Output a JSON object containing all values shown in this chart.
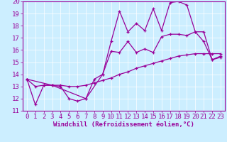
{
  "xlabel": "Windchill (Refroidissement éolien,°C)",
  "bg_color": "#cceeff",
  "line_color": "#990099",
  "xlim": [
    -0.5,
    23.5
  ],
  "ylim": [
    11,
    20
  ],
  "yticks": [
    11,
    12,
    13,
    14,
    15,
    16,
    17,
    18,
    19,
    20
  ],
  "xticks": [
    0,
    1,
    2,
    3,
    4,
    5,
    6,
    7,
    8,
    9,
    10,
    11,
    12,
    13,
    14,
    15,
    16,
    17,
    18,
    19,
    20,
    21,
    22,
    23
  ],
  "line1_x": [
    0,
    1,
    2,
    3,
    4,
    5,
    6,
    7,
    8,
    9,
    10,
    11,
    12,
    13,
    14,
    15,
    16,
    17,
    18,
    19,
    20,
    21,
    22,
    23
  ],
  "line1_y": [
    13.6,
    11.5,
    13.1,
    13.1,
    13.0,
    12.0,
    11.8,
    12.0,
    13.6,
    14.0,
    16.7,
    19.2,
    17.5,
    18.2,
    17.6,
    19.4,
    17.6,
    19.9,
    20.0,
    19.7,
    17.5,
    16.7,
    15.2,
    15.4
  ],
  "line2_x": [
    0,
    1,
    2,
    3,
    4,
    5,
    6,
    7,
    8,
    9,
    10,
    11,
    12,
    13,
    14,
    15,
    16,
    17,
    18,
    19,
    20,
    21,
    22,
    23
  ],
  "line2_y": [
    13.6,
    13.0,
    13.1,
    13.1,
    13.1,
    13.0,
    13.0,
    13.1,
    13.3,
    13.5,
    13.7,
    14.0,
    14.2,
    14.5,
    14.7,
    14.9,
    15.1,
    15.3,
    15.5,
    15.6,
    15.7,
    15.7,
    15.7,
    15.7
  ],
  "line3_x": [
    0,
    3,
    7,
    9,
    10,
    11,
    12,
    13,
    14,
    15,
    16,
    17,
    18,
    19,
    20,
    21,
    22,
    23
  ],
  "line3_y": [
    13.6,
    13.1,
    12.0,
    14.0,
    15.9,
    15.8,
    16.7,
    15.8,
    16.1,
    15.8,
    17.1,
    17.3,
    17.3,
    17.2,
    17.5,
    17.5,
    15.2,
    15.5
  ],
  "tick_fontsize": 6.5,
  "xlabel_fontsize": 6.5,
  "marker_size": 3,
  "line_width": 0.9
}
